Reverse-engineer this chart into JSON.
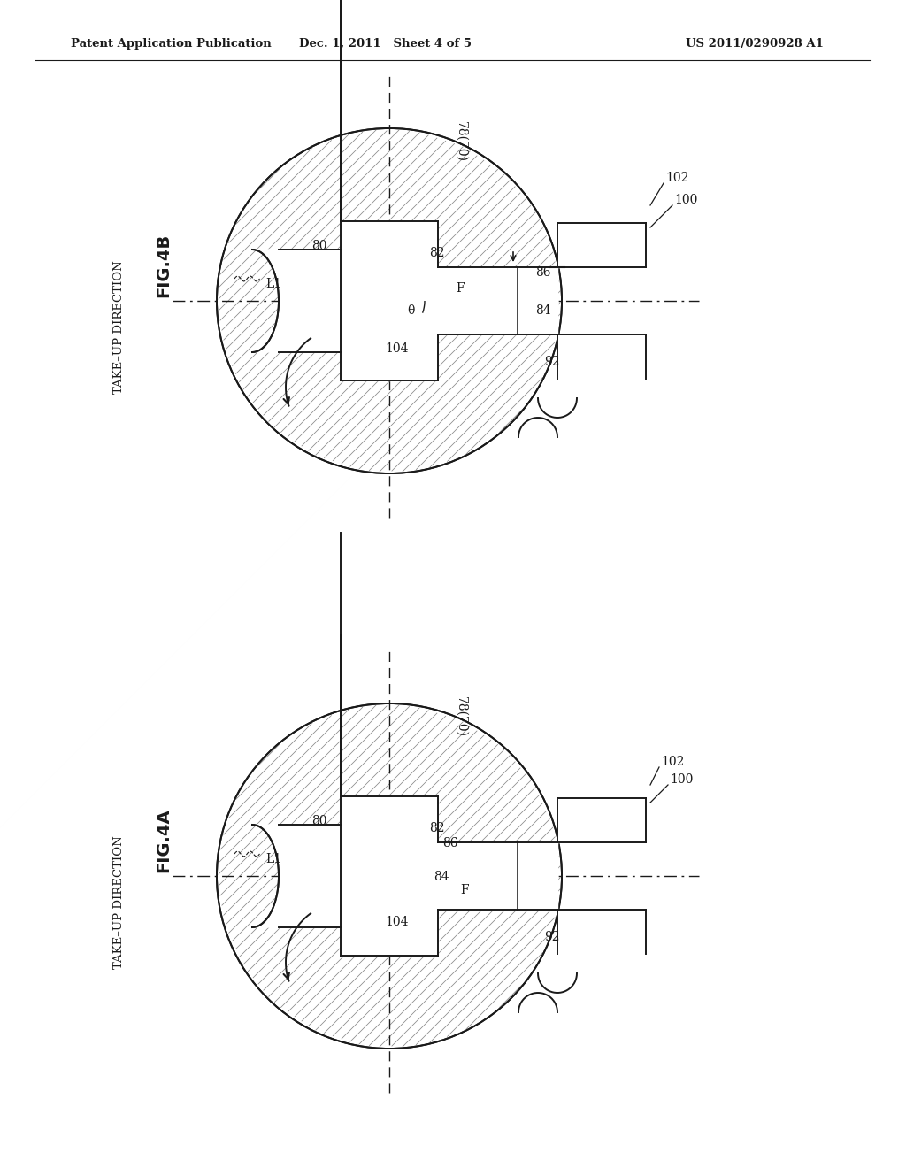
{
  "bg_color": "#ffffff",
  "lc": "#1a1a1a",
  "header_left": "Patent Application Publication",
  "header_mid": "Dec. 1, 2011   Sheet 4 of 5",
  "header_right": "US 2011/0290928 A1",
  "fig4b_label": "FIG.4B",
  "fig4a_label": "FIG.4A",
  "take_up": "TAKE–UP DIRECTION",
  "L1": "L1",
  "lbl_78_70": "78(70)",
  "lbl_80": "80",
  "lbl_82": "82",
  "lbl_84": "84",
  "lbl_86": "86",
  "lbl_92": "92",
  "lbl_100": "100",
  "lbl_102": "102",
  "lbl_104": "104",
  "lbl_F": "F",
  "lbl_theta": "θ"
}
